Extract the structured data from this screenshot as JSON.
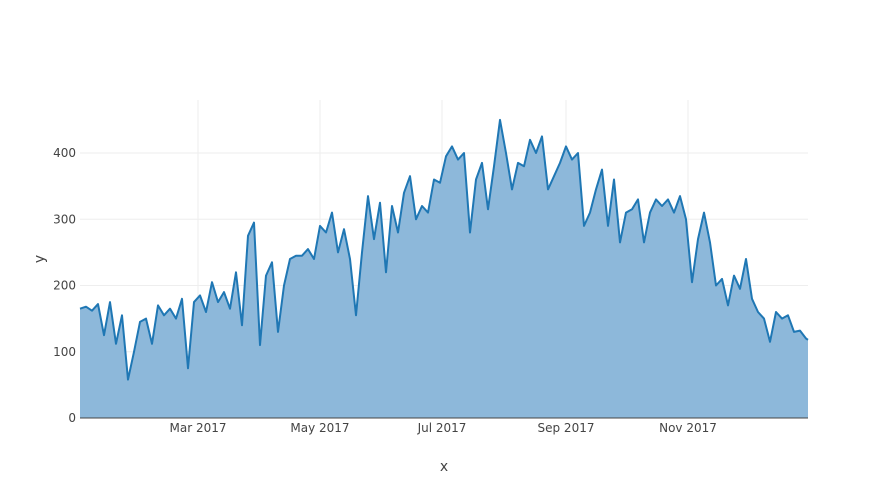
{
  "chart_data": {
    "type": "area",
    "xlabel": "x",
    "ylabel": "y",
    "x_range": [
      "2017-01-01",
      "2017-12-31"
    ],
    "ylim": [
      0,
      480
    ],
    "grid": true,
    "colors": {
      "line": "#1f77b4",
      "fill": "#8db8da",
      "grid": "#eeeeee",
      "axis": "#444444"
    },
    "x_ticks": [
      {
        "date": "2017-03-01",
        "label": "Mar 2017"
      },
      {
        "date": "2017-05-01",
        "label": "May 2017"
      },
      {
        "date": "2017-07-01",
        "label": "Jul 2017"
      },
      {
        "date": "2017-09-01",
        "label": "Sep 2017"
      },
      {
        "date": "2017-11-01",
        "label": "Nov 2017"
      }
    ],
    "y_ticks": [
      {
        "value": 0,
        "label": "0"
      },
      {
        "value": 100,
        "label": "100"
      },
      {
        "value": 200,
        "label": "200"
      },
      {
        "value": 300,
        "label": "300"
      },
      {
        "value": 400,
        "label": "400"
      }
    ],
    "series": [
      {
        "x": [
          "2017-01-01",
          "2017-01-04",
          "2017-01-07",
          "2017-01-10",
          "2017-01-13",
          "2017-01-16",
          "2017-01-19",
          "2017-01-22",
          "2017-01-25",
          "2017-01-28",
          "2017-01-31",
          "2017-02-03",
          "2017-02-06",
          "2017-02-09",
          "2017-02-12",
          "2017-02-15",
          "2017-02-18",
          "2017-02-21",
          "2017-02-24",
          "2017-02-27",
          "2017-03-02",
          "2017-03-05",
          "2017-03-08",
          "2017-03-11",
          "2017-03-14",
          "2017-03-17",
          "2017-03-20",
          "2017-03-23",
          "2017-03-26",
          "2017-03-29",
          "2017-04-01",
          "2017-04-04",
          "2017-04-07",
          "2017-04-10",
          "2017-04-13",
          "2017-04-16",
          "2017-04-19",
          "2017-04-22",
          "2017-04-25",
          "2017-04-28",
          "2017-05-01",
          "2017-05-04",
          "2017-05-07",
          "2017-05-10",
          "2017-05-13",
          "2017-05-16",
          "2017-05-19",
          "2017-05-22",
          "2017-05-25",
          "2017-05-28",
          "2017-05-31",
          "2017-06-03",
          "2017-06-06",
          "2017-06-09",
          "2017-06-12",
          "2017-06-15",
          "2017-06-18",
          "2017-06-21",
          "2017-06-24",
          "2017-06-27",
          "2017-06-30",
          "2017-07-03",
          "2017-07-06",
          "2017-07-09",
          "2017-07-12",
          "2017-07-15",
          "2017-07-18",
          "2017-07-21",
          "2017-07-24",
          "2017-07-27",
          "2017-07-30",
          "2017-08-02",
          "2017-08-05",
          "2017-08-08",
          "2017-08-11",
          "2017-08-14",
          "2017-08-17",
          "2017-08-20",
          "2017-08-23",
          "2017-08-26",
          "2017-08-29",
          "2017-09-01",
          "2017-09-04",
          "2017-09-07",
          "2017-09-10",
          "2017-09-13",
          "2017-09-16",
          "2017-09-19",
          "2017-09-22",
          "2017-09-25",
          "2017-09-28",
          "2017-10-01",
          "2017-10-04",
          "2017-10-07",
          "2017-10-10",
          "2017-10-13",
          "2017-10-16",
          "2017-10-19",
          "2017-10-22",
          "2017-10-25",
          "2017-10-28",
          "2017-10-31",
          "2017-11-03",
          "2017-11-06",
          "2017-11-09",
          "2017-11-12",
          "2017-11-15",
          "2017-11-18",
          "2017-11-21",
          "2017-11-24",
          "2017-11-27",
          "2017-11-30",
          "2017-12-03",
          "2017-12-06",
          "2017-12-09",
          "2017-12-12",
          "2017-12-15",
          "2017-12-18",
          "2017-12-21",
          "2017-12-24",
          "2017-12-27",
          "2017-12-30",
          "2017-12-31"
        ],
        "y": [
          165,
          168,
          162,
          172,
          125,
          175,
          112,
          155,
          58,
          100,
          145,
          150,
          112,
          170,
          155,
          165,
          150,
          180,
          75,
          175,
          185,
          160,
          205,
          175,
          190,
          165,
          220,
          140,
          275,
          295,
          110,
          215,
          235,
          130,
          200,
          240,
          245,
          245,
          255,
          240,
          290,
          280,
          310,
          250,
          285,
          240,
          155,
          250,
          335,
          270,
          325,
          220,
          320,
          280,
          340,
          365,
          300,
          320,
          310,
          360,
          355,
          395,
          410,
          390,
          400,
          280,
          360,
          385,
          315,
          380,
          450,
          400,
          345,
          385,
          380,
          420,
          400,
          425,
          345,
          365,
          385,
          410,
          390,
          400,
          290,
          310,
          345,
          375,
          290,
          360,
          265,
          310,
          315,
          330,
          265,
          310,
          330,
          320,
          330,
          310,
          335,
          300,
          205,
          270,
          310,
          265,
          200,
          210,
          170,
          215,
          195,
          240,
          180,
          160,
          150,
          115,
          160,
          150,
          155,
          130,
          132,
          120,
          118
        ]
      }
    ]
  }
}
